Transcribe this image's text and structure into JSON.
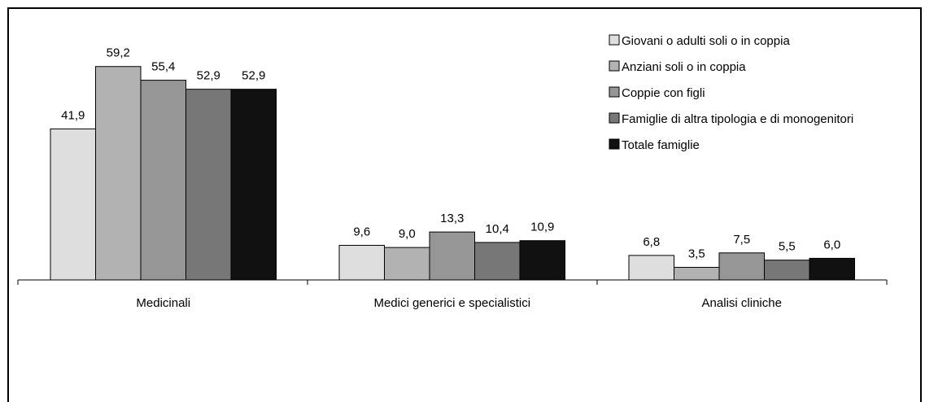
{
  "chart_data": {
    "type": "bar",
    "categories": [
      "Medicinali",
      "Medici generici e specialistici",
      "Analisi cliniche"
    ],
    "series": [
      {
        "name": "Giovani o adulti soli o in coppia",
        "values": [
          41.9,
          9.6,
          6.8
        ],
        "labels": [
          "41,9",
          "9,6",
          "6,8"
        ],
        "color": "#dedede"
      },
      {
        "name": "Anziani soli o in coppia",
        "values": [
          59.2,
          9.0,
          3.5
        ],
        "labels": [
          "59,2",
          "9,0",
          "3,5"
        ],
        "color": "#b2b2b2"
      },
      {
        "name": "Coppie con figli",
        "values": [
          55.4,
          13.3,
          7.5
        ],
        "labels": [
          "55,4",
          "13,3",
          "7,5"
        ],
        "color": "#969696"
      },
      {
        "name": "Famiglie di altra tipologia e di monogenitori",
        "values": [
          52.9,
          10.4,
          5.5
        ],
        "labels": [
          "52,9",
          "10,4",
          "5,5"
        ],
        "color": "#777777"
      },
      {
        "name": "Totale famiglie",
        "values": [
          52.9,
          10.9,
          6.0
        ],
        "labels": [
          "52,9",
          "10,9",
          "6,0"
        ],
        "color": "#111111"
      }
    ],
    "ylim": [
      0,
      68
    ],
    "grid": false,
    "legend_position": "top-right"
  }
}
